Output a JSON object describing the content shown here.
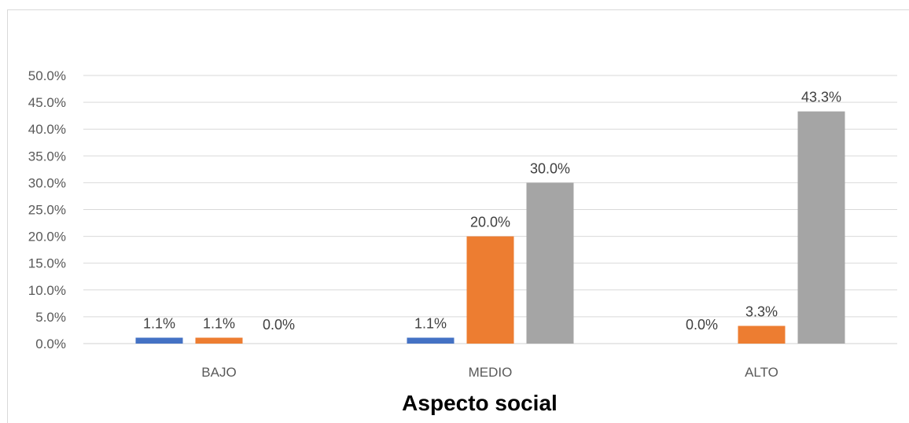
{
  "chart_data": {
    "type": "bar",
    "title": "",
    "xlabel": "Aspecto social",
    "ylabel": "",
    "categories": [
      "BAJO",
      "MEDIO",
      "ALTO"
    ],
    "series": [
      {
        "color": "#4472c4",
        "values": [
          1.1,
          1.1,
          0.0
        ],
        "labels": [
          "1.1%",
          "1.1%",
          "0.0%"
        ]
      },
      {
        "color": "#ed7d31",
        "values": [
          1.1,
          20.0,
          3.3
        ],
        "labels": [
          "1.1%",
          "20.0%",
          "3.3%"
        ]
      },
      {
        "color": "#a5a5a5",
        "values": [
          0.0,
          30.0,
          43.3
        ],
        "labels": [
          "0.0%",
          "30.0%",
          "43.3%"
        ]
      }
    ],
    "ylim": [
      0,
      50
    ],
    "yticks": [
      0,
      5,
      10,
      15,
      20,
      25,
      30,
      35,
      40,
      45,
      50
    ],
    "ytick_labels": [
      "0.0%",
      "5.0%",
      "10.0%",
      "15.0%",
      "20.0%",
      "25.0%",
      "30.0%",
      "35.0%",
      "40.0%",
      "45.0%",
      "50.0%"
    ],
    "grid": true,
    "legend": "none"
  }
}
